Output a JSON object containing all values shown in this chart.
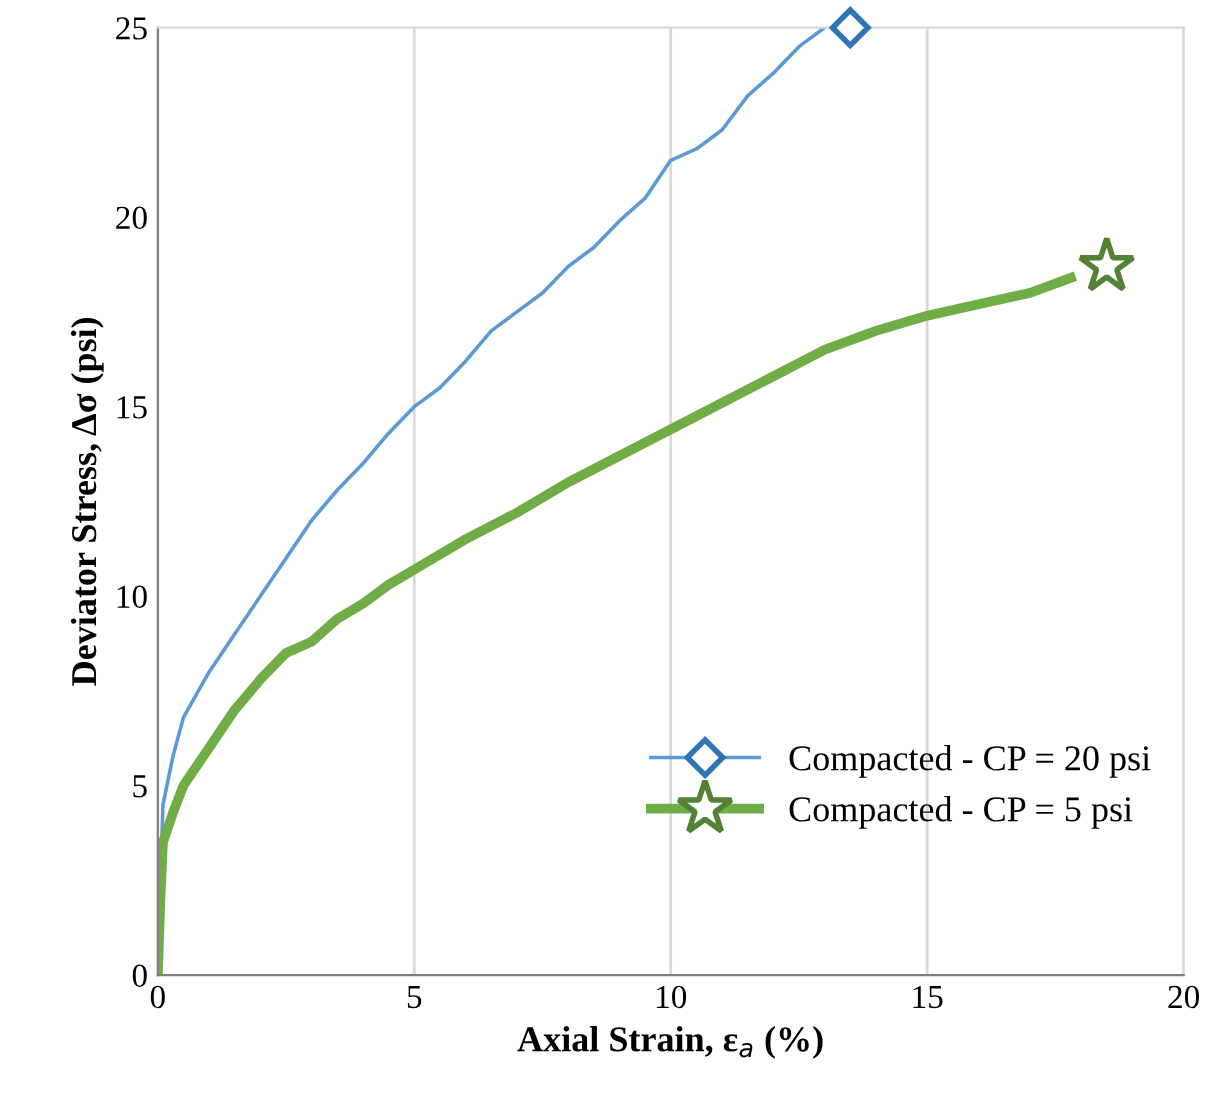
{
  "chart_data": {
    "type": "line",
    "xlabel": "Axial Strain, ε$_{a}$ (%)",
    "ylabel": "Deviator Stress, Δσ (psi)",
    "xlim": [
      0,
      20
    ],
    "xticks": [
      0,
      5,
      10,
      15,
      20
    ],
    "ylim": [
      0,
      25
    ],
    "yticks": [
      0,
      5,
      10,
      15,
      20,
      25
    ],
    "grid": "x",
    "legend": "bottom right",
    "series": [
      {
        "name": "Compacted - CP = 20 psi",
        "color": "#5b9bd5",
        "x": [
          0,
          0.1,
          0.3,
          0.5,
          1,
          1.5,
          2,
          2.5,
          3,
          3.5,
          4,
          4.5,
          5,
          5.5,
          6,
          6.5,
          7,
          7.5,
          8,
          8.5,
          9,
          9.5,
          10,
          10.5,
          11,
          11.5,
          12,
          12.5,
          13
        ],
        "values": [
          0,
          4.5,
          5.8,
          6.8,
          8,
          9,
          10,
          11,
          12,
          12.8,
          13.5,
          14.3,
          15,
          15.5,
          16.2,
          17,
          17.5,
          18,
          18.7,
          19.2,
          19.9,
          20.5,
          21.5,
          21.8,
          22.3,
          23.2,
          23.8,
          24.5,
          25
        ]
      },
      {
        "type": "scatter",
        "color": "#2e75b6",
        "marker": "diamond",
        "x": [
          13.5
        ],
        "values": [
          25
        ]
      },
      {
        "name": "Compacted - CP = 5 psi",
        "color": "#70ad47",
        "x": [
          0,
          0.05,
          0.1,
          0.3,
          0.5,
          1,
          1.5,
          2,
          2.5,
          3,
          3.5,
          4,
          4.5,
          5,
          6,
          7,
          8,
          9,
          10,
          11,
          12,
          13,
          14,
          15,
          16,
          17,
          17.8
        ],
        "values": [
          0,
          2,
          3.5,
          4.3,
          5,
          6,
          7,
          7.8,
          8.5,
          8.8,
          9.4,
          9.8,
          10.3,
          10.7,
          11.5,
          12.2,
          13,
          13.7,
          14.4,
          15.1,
          15.8,
          16.5,
          17,
          17.4,
          17.7,
          18,
          18.4
        ]
      },
      {
        "type": "scatter",
        "color": "#548235",
        "marker": "star",
        "x": [
          18.5
        ],
        "values": [
          18.7
        ]
      }
    ]
  }
}
